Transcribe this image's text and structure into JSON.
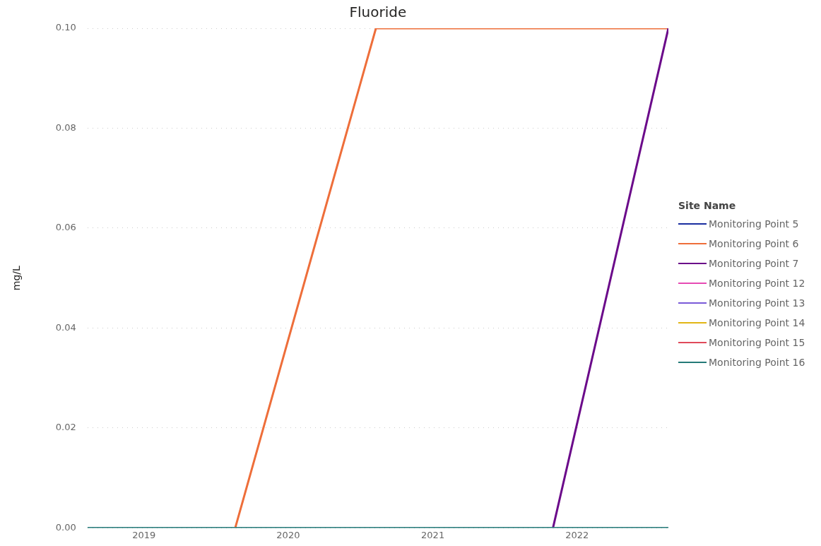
{
  "chart_data": {
    "type": "line",
    "title": "Fluoride",
    "ylabel": "mg/L",
    "legend_title": "Site Name",
    "legend": "right",
    "x": [
      "2018-08-11",
      "2019-08-20",
      "2020-08-10",
      "2021-11-01",
      "2022-08-20"
    ],
    "xlim": [
      "2018-08-11",
      "2022-08-20"
    ],
    "xticks": [
      "2019",
      "2020",
      "2021",
      "2022"
    ],
    "ylim": [
      0,
      0.1
    ],
    "yticks": [
      {
        "value": 0,
        "label": "0.00"
      },
      {
        "value": 0.02,
        "label": "0.02"
      },
      {
        "value": 0.04,
        "label": "0.04"
      },
      {
        "value": 0.06,
        "label": "0.06"
      },
      {
        "value": 0.08,
        "label": "0.08"
      },
      {
        "value": 0.1,
        "label": "0.10"
      }
    ],
    "grid": "y",
    "marker": "none",
    "line_style": "solid",
    "series": [
      {
        "name": "Monitoring Point 5",
        "color": "#1a2ea0",
        "values": [
          null,
          null,
          null,
          null,
          null
        ]
      },
      {
        "name": "Monitoring Point 6",
        "color": "#ee6e3a",
        "values": [
          null,
          0,
          0.1,
          0.1,
          0.1
        ]
      },
      {
        "name": "Monitoring Point 7",
        "color": "#6b0a8a",
        "values": [
          null,
          null,
          null,
          0,
          0.1
        ]
      },
      {
        "name": "Monitoring Point 12",
        "color": "#e64bb4",
        "values": [
          null,
          null,
          null,
          null,
          null
        ]
      },
      {
        "name": "Monitoring Point 13",
        "color": "#7a5ad8",
        "values": [
          null,
          null,
          null,
          null,
          null
        ]
      },
      {
        "name": "Monitoring Point 14",
        "color": "#e2b615",
        "values": [
          null,
          null,
          null,
          null,
          null
        ]
      },
      {
        "name": "Monitoring Point 15",
        "color": "#e04a5a",
        "values": [
          null,
          null,
          null,
          null,
          null
        ]
      },
      {
        "name": "Monitoring Point 16",
        "color": "#247a78",
        "values": [
          0,
          0,
          0,
          0,
          0
        ]
      }
    ]
  }
}
